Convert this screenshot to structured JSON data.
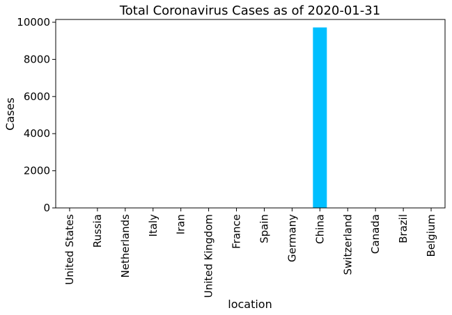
{
  "chart_data": {
    "type": "bar",
    "title": "Total Coronavirus Cases as of 2020-01-31",
    "xlabel": "location",
    "ylabel": "Cases",
    "categories": [
      "United States",
      "Russia",
      "Netherlands",
      "Italy",
      "Iran",
      "United Kingdom",
      "France",
      "Spain",
      "Germany",
      "China",
      "Switzerland",
      "Canada",
      "Brazil",
      "Belgium"
    ],
    "values": [
      6,
      2,
      0,
      2,
      0,
      2,
      6,
      0,
      5,
      9720,
      0,
      3,
      0,
      0
    ],
    "ylim": [
      0,
      10150
    ],
    "yticks": [
      0,
      2000,
      4000,
      6000,
      8000,
      10000
    ],
    "grid": false,
    "legend": "none",
    "bar_color": "#00bfff"
  }
}
